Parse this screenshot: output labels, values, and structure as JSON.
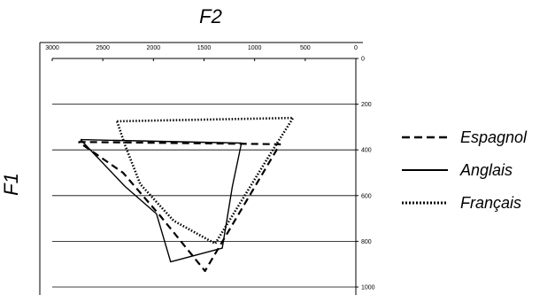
{
  "chart_data": {
    "type": "line",
    "xlabel": "F2",
    "ylabel": "F1",
    "x_reversed": true,
    "y_reversed": true,
    "xlim": [
      3000,
      0
    ],
    "ylim": [
      0,
      1000
    ],
    "x_ticks": [
      3000,
      2500,
      2000,
      1500,
      1000,
      500,
      0
    ],
    "y_ticks": [
      0,
      200,
      400,
      600,
      800,
      1000
    ],
    "x_tick_labels": [
      "3000",
      "2500",
      "2000",
      "1500",
      "1000",
      "500",
      "0"
    ],
    "y_tick_labels": [
      "0",
      "200",
      "400",
      "600",
      "800",
      "1000"
    ],
    "grid": "horizontal",
    "legend_position": "right",
    "series": [
      {
        "name": "Espagnol",
        "style": "dashed",
        "points": [
          [
            2740,
            365
          ],
          [
            750,
            375
          ],
          [
            1490,
            930
          ],
          [
            1930,
            690
          ],
          [
            2300,
            500
          ],
          [
            2740,
            365
          ]
        ]
      },
      {
        "name": "Anglais",
        "style": "solid",
        "points": [
          [
            2720,
            355
          ],
          [
            1130,
            370
          ],
          [
            1220,
            560
          ],
          [
            1320,
            830
          ],
          [
            1830,
            890
          ],
          [
            1970,
            680
          ],
          [
            2280,
            560
          ],
          [
            2720,
            355
          ]
        ]
      },
      {
        "name": "Français",
        "style": "dotted",
        "points": [
          [
            2360,
            275
          ],
          [
            620,
            260
          ],
          [
            820,
            400
          ],
          [
            1390,
            810
          ],
          [
            1800,
            710
          ],
          [
            2130,
            550
          ],
          [
            2280,
            380
          ],
          [
            2360,
            275
          ]
        ]
      }
    ]
  }
}
